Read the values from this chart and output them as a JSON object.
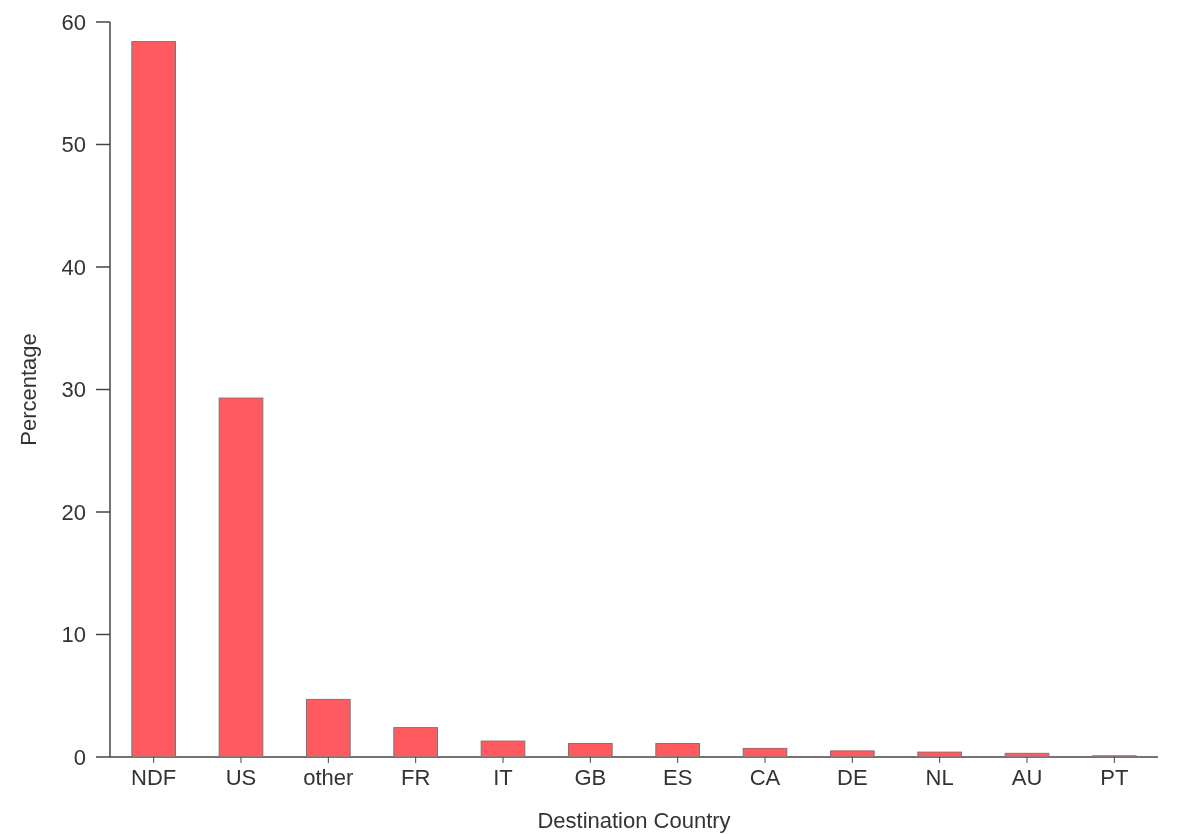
{
  "chart_data": {
    "type": "bar",
    "xlabel": "Destination Country",
    "ylabel": "Percentage",
    "categories": [
      "NDF",
      "US",
      "other",
      "FR",
      "IT",
      "GB",
      "ES",
      "CA",
      "DE",
      "NL",
      "AU",
      "PT"
    ],
    "values": [
      58.4,
      29.3,
      4.7,
      2.4,
      1.3,
      1.1,
      1.1,
      0.7,
      0.5,
      0.4,
      0.3,
      0.1
    ],
    "color": "#ff5a5f",
    "ylim": [
      0,
      60
    ],
    "yticks": [
      0,
      10,
      20,
      30,
      40,
      50,
      60
    ],
    "grid": false
  }
}
